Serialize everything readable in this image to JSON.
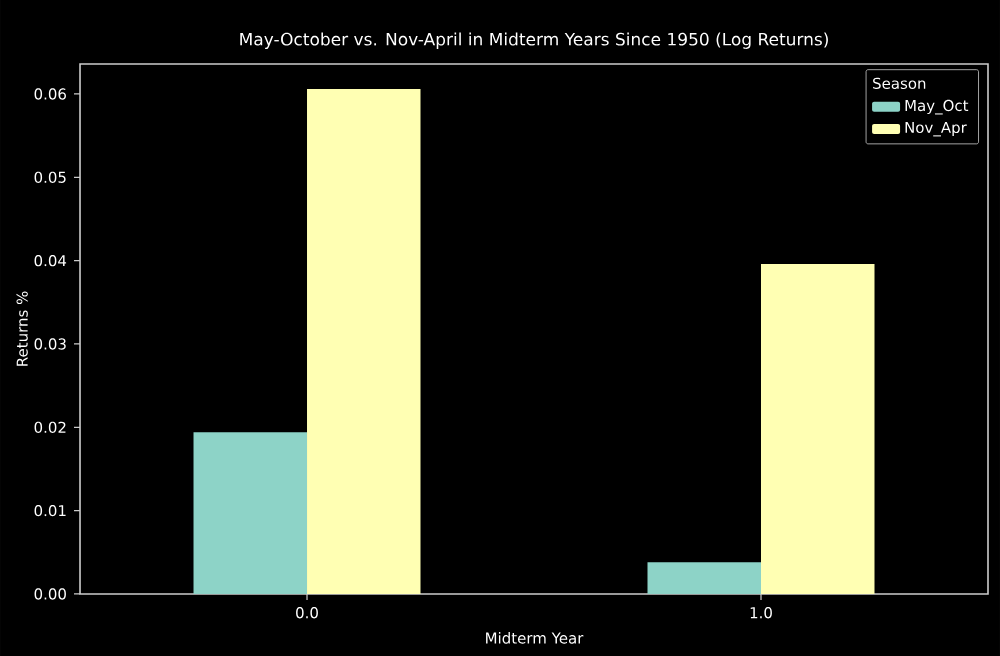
{
  "chart_data": {
    "type": "bar",
    "title": "May-October vs. Nov-April in Midterm Years Since 1950 (Log Returns)",
    "xlabel": "Midterm Year",
    "ylabel": "Returns %",
    "legend_title": "Season",
    "categories": [
      "0.0",
      "1.0"
    ],
    "series": [
      {
        "name": "May_Oct",
        "color": "#8dd3c7",
        "values": [
          0.0194,
          0.0038
        ]
      },
      {
        "name": "Nov_Apr",
        "color": "#ffffb3",
        "values": [
          0.0606,
          0.0396
        ]
      }
    ],
    "ylim": [
      0,
      0.0636
    ],
    "yticks": [
      {
        "value": 0,
        "label": "0.00"
      },
      0.01,
      0.02,
      0.03,
      0.04,
      0.05,
      0.06
    ],
    "grid": false,
    "legend": "top right"
  }
}
